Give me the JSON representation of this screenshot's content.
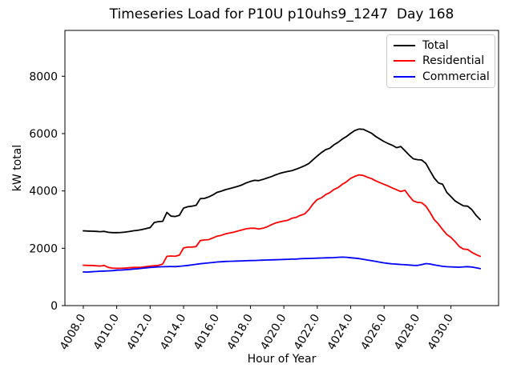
{
  "chart_data": {
    "type": "line",
    "title": "Timeseries Load for P10U p10uhs9_1247  Day 168",
    "xlabel": "Hour of Year",
    "ylabel": "kW total",
    "grid": false,
    "background_color": "#ffffff",
    "xlim": [
      4006.9,
      4032.85
    ],
    "ylim": [
      0,
      9600
    ],
    "xticks": [
      4008,
      4010,
      4012,
      4014,
      4016,
      4018,
      4020,
      4022,
      4024,
      4026,
      4028,
      4030
    ],
    "xtick_labels": [
      "4008.0",
      "4010.0",
      "4012.0",
      "4014.0",
      "4016.0",
      "4018.0",
      "4020.0",
      "4022.0",
      "4024.0",
      "4026.0",
      "4028.0",
      "4030.0"
    ],
    "xtick_rotation_deg": 60,
    "yticks": [
      0,
      2000,
      4000,
      6000,
      8000
    ],
    "ytick_labels": [
      "0",
      "2000",
      "4000",
      "6000",
      "8000"
    ],
    "legend": {
      "position": "upper right",
      "entries": [
        "Total",
        "Residential",
        "Commercial"
      ]
    },
    "x": [
      4008.0,
      4008.25,
      4008.5,
      4008.75,
      4009.0,
      4009.25,
      4009.5,
      4009.75,
      4010.0,
      4010.25,
      4010.5,
      4010.75,
      4011.0,
      4011.25,
      4011.5,
      4011.75,
      4012.0,
      4012.25,
      4012.5,
      4012.75,
      4013.0,
      4013.25,
      4013.5,
      4013.75,
      4014.0,
      4014.25,
      4014.5,
      4014.75,
      4015.0,
      4015.25,
      4015.5,
      4015.75,
      4016.0,
      4016.25,
      4016.5,
      4016.75,
      4017.0,
      4017.25,
      4017.5,
      4017.75,
      4018.0,
      4018.25,
      4018.5,
      4018.75,
      4019.0,
      4019.25,
      4019.5,
      4019.75,
      4020.0,
      4020.25,
      4020.5,
      4020.75,
      4021.0,
      4021.25,
      4021.5,
      4021.75,
      4022.0,
      4022.25,
      4022.5,
      4022.75,
      4023.0,
      4023.25,
      4023.5,
      4023.75,
      4024.0,
      4024.25,
      4024.5,
      4024.75,
      4025.0,
      4025.25,
      4025.5,
      4025.75,
      4026.0,
      4026.25,
      4026.5,
      4026.75,
      4027.0,
      4027.25,
      4027.5,
      4027.75,
      4028.0,
      4028.25,
      4028.5,
      4028.75,
      4029.0,
      4029.25,
      4029.5,
      4029.75,
      4030.0,
      4030.25,
      4030.5,
      4030.75,
      4031.0,
      4031.25,
      4031.5,
      4031.75
    ],
    "series": [
      {
        "name": "Total",
        "color": "#000000",
        "values": [
          2610,
          2600,
          2595,
          2590,
          2580,
          2590,
          2555,
          2545,
          2545,
          2550,
          2565,
          2585,
          2610,
          2625,
          2650,
          2685,
          2720,
          2900,
          2930,
          2940,
          3250,
          3120,
          3110,
          3150,
          3400,
          3450,
          3470,
          3500,
          3730,
          3740,
          3790,
          3860,
          3950,
          3990,
          4045,
          4080,
          4120,
          4160,
          4210,
          4280,
          4330,
          4370,
          4360,
          4400,
          4450,
          4500,
          4560,
          4610,
          4650,
          4680,
          4710,
          4760,
          4820,
          4880,
          4960,
          5090,
          5220,
          5340,
          5440,
          5490,
          5610,
          5700,
          5810,
          5900,
          6010,
          6110,
          6160,
          6150,
          6080,
          6010,
          5900,
          5810,
          5720,
          5650,
          5590,
          5510,
          5550,
          5400,
          5250,
          5120,
          5090,
          5080,
          4960,
          4700,
          4450,
          4280,
          4230,
          3950,
          3800,
          3650,
          3560,
          3480,
          3470,
          3350,
          3150,
          3000
        ]
      },
      {
        "name": "Residential",
        "color": "#ff0000",
        "values": [
          1410,
          1400,
          1400,
          1390,
          1380,
          1400,
          1330,
          1310,
          1300,
          1300,
          1310,
          1320,
          1330,
          1330,
          1340,
          1360,
          1380,
          1390,
          1400,
          1450,
          1720,
          1730,
          1720,
          1760,
          2010,
          2040,
          2040,
          2060,
          2270,
          2290,
          2300,
          2360,
          2420,
          2450,
          2500,
          2530,
          2560,
          2600,
          2640,
          2680,
          2700,
          2700,
          2670,
          2700,
          2750,
          2820,
          2880,
          2920,
          2950,
          2980,
          3050,
          3080,
          3150,
          3200,
          3350,
          3550,
          3700,
          3760,
          3870,
          3940,
          4050,
          4120,
          4230,
          4320,
          4440,
          4510,
          4560,
          4540,
          4480,
          4430,
          4350,
          4290,
          4230,
          4170,
          4100,
          4040,
          3980,
          4020,
          3820,
          3650,
          3600,
          3590,
          3470,
          3250,
          3000,
          2850,
          2650,
          2480,
          2380,
          2230,
          2060,
          1970,
          1960,
          1860,
          1780,
          1720
        ]
      },
      {
        "name": "Commercial",
        "color": "#0000ff",
        "values": [
          1175,
          1170,
          1180,
          1190,
          1200,
          1205,
          1210,
          1220,
          1235,
          1240,
          1250,
          1260,
          1275,
          1285,
          1300,
          1315,
          1330,
          1340,
          1350,
          1355,
          1360,
          1365,
          1360,
          1370,
          1385,
          1400,
          1420,
          1440,
          1460,
          1475,
          1490,
          1505,
          1520,
          1530,
          1540,
          1545,
          1550,
          1555,
          1560,
          1565,
          1570,
          1575,
          1580,
          1585,
          1590,
          1595,
          1600,
          1605,
          1610,
          1615,
          1620,
          1625,
          1635,
          1640,
          1645,
          1650,
          1655,
          1660,
          1665,
          1670,
          1675,
          1685,
          1690,
          1685,
          1670,
          1655,
          1640,
          1615,
          1590,
          1565,
          1540,
          1515,
          1490,
          1470,
          1455,
          1445,
          1435,
          1425,
          1415,
          1405,
          1400,
          1430,
          1465,
          1450,
          1420,
          1395,
          1370,
          1355,
          1350,
          1345,
          1340,
          1350,
          1360,
          1345,
          1320,
          1290
        ]
      }
    ]
  }
}
